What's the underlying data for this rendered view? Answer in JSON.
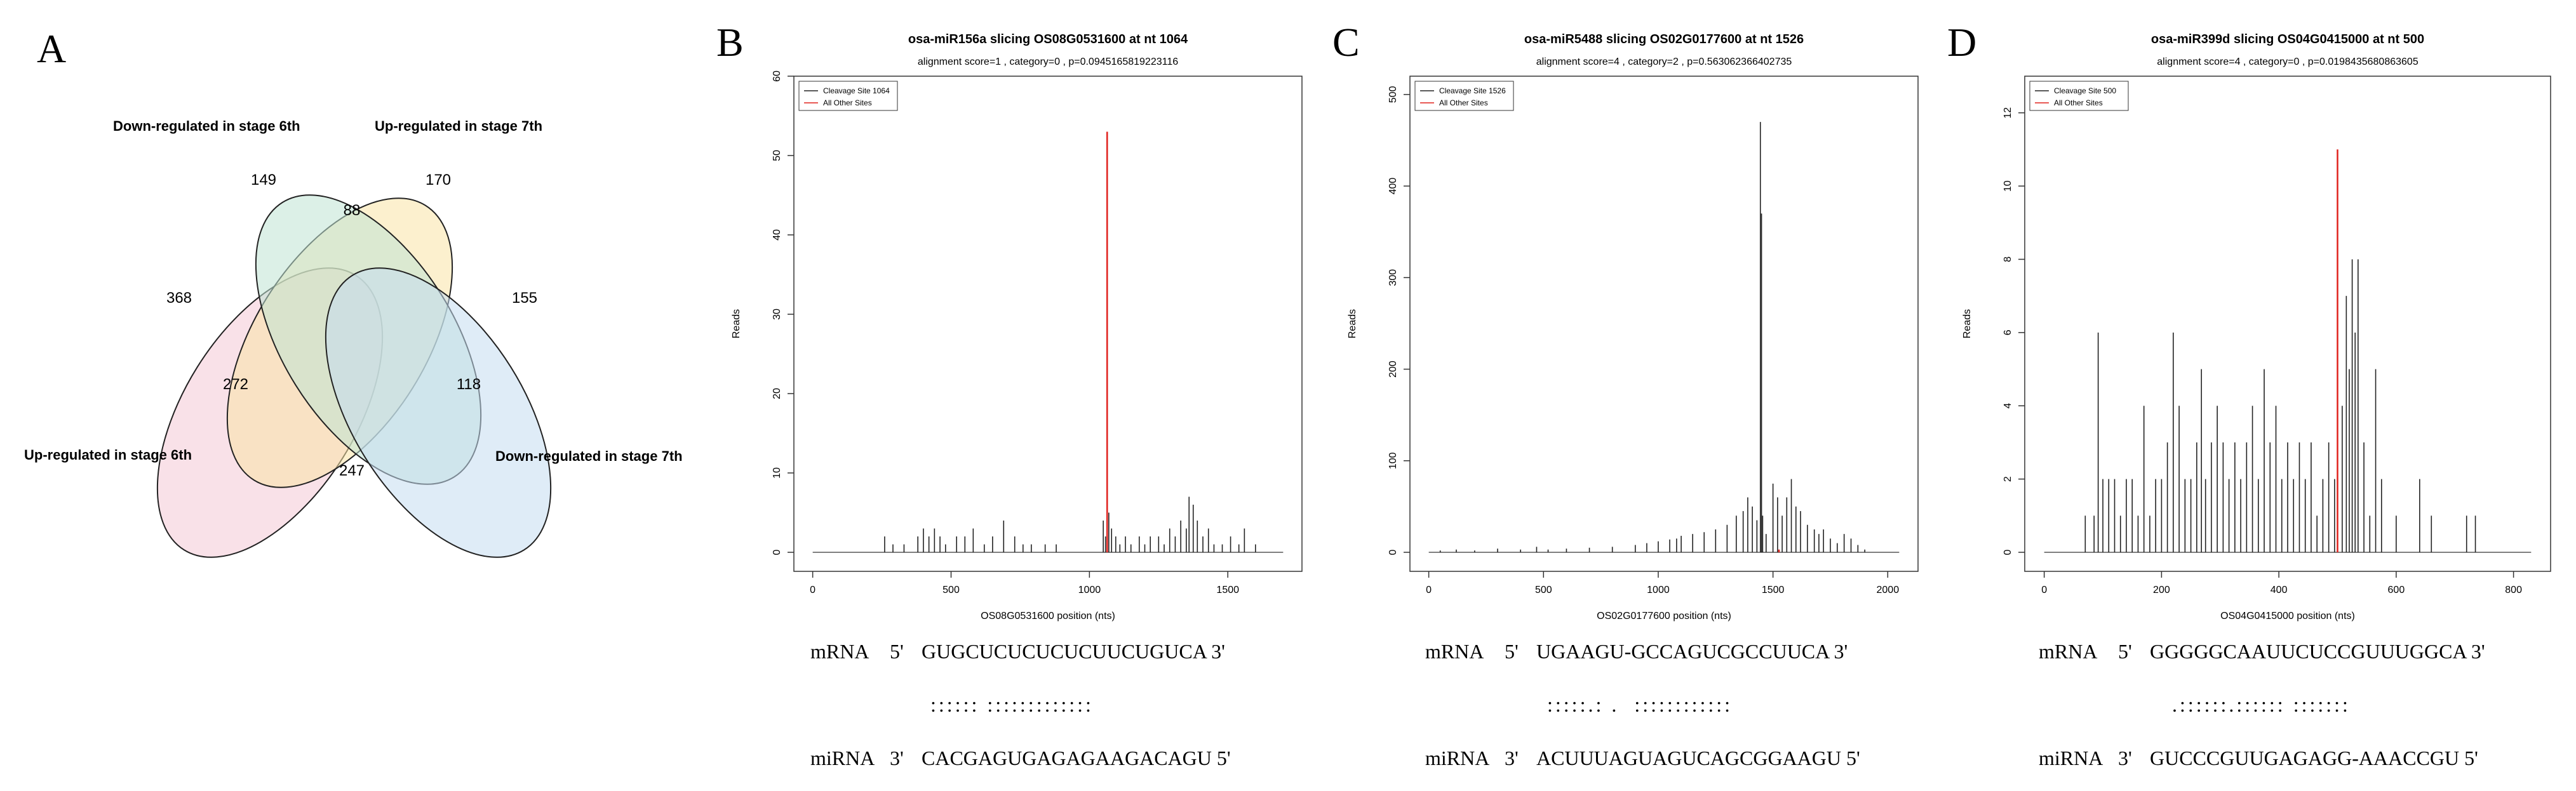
{
  "panels": {
    "A": "A",
    "B": "B",
    "C": "C",
    "D": "D"
  },
  "venn": {
    "labels": {
      "down6": "Down-regulated in stage 6th",
      "up7": "Up-regulated in stage 7th",
      "up6": "Up-regulated in stage 6th",
      "down7": "Down-regulated in stage 7th"
    },
    "counts": {
      "down6_only": "149",
      "up7_only": "170",
      "down6_up7": "88",
      "up6_only": "368",
      "down7_only": "155",
      "up6_down7": "247",
      "up6_up7": "272",
      "down6_down7": "118"
    },
    "colors": {
      "up6": "#f4c9d6",
      "down6": "#f9e3a6",
      "up7": "#bfe3d3",
      "down7": "#c5ddf0"
    }
  },
  "chart_data": [
    {
      "type": "bar",
      "title": "osa-miR156a slicing OS08G0531600 at nt 1064",
      "subtitle": "alignment score=1 , category=0 , p=0.0945165819223116",
      "xlabel": "OS08G0531600 position (nts)",
      "ylabel": "Reads",
      "xlim": [
        0,
        1700
      ],
      "ylim": [
        0,
        60
      ],
      "xticks": [
        0,
        500,
        1000,
        1500
      ],
      "yticks": [
        0,
        10,
        20,
        30,
        40,
        50,
        60
      ],
      "legend": [
        "Cleavage Site 1064",
        "All Other Sites"
      ],
      "cleavage_site": {
        "x": 1064,
        "y": 53
      },
      "other_sites": [
        [
          260,
          2
        ],
        [
          290,
          1
        ],
        [
          330,
          1
        ],
        [
          380,
          2
        ],
        [
          400,
          3
        ],
        [
          420,
          2
        ],
        [
          440,
          3
        ],
        [
          460,
          2
        ],
        [
          480,
          1
        ],
        [
          520,
          2
        ],
        [
          550,
          2
        ],
        [
          580,
          3
        ],
        [
          620,
          1
        ],
        [
          650,
          2
        ],
        [
          690,
          4
        ],
        [
          730,
          2
        ],
        [
          760,
          1
        ],
        [
          790,
          1
        ],
        [
          840,
          1
        ],
        [
          880,
          1
        ],
        [
          1050,
          4
        ],
        [
          1058,
          2
        ],
        [
          1070,
          5
        ],
        [
          1080,
          3
        ],
        [
          1095,
          2
        ],
        [
          1110,
          1
        ],
        [
          1130,
          2
        ],
        [
          1150,
          1
        ],
        [
          1180,
          2
        ],
        [
          1200,
          1
        ],
        [
          1220,
          2
        ],
        [
          1250,
          2
        ],
        [
          1270,
          1
        ],
        [
          1290,
          3
        ],
        [
          1310,
          2
        ],
        [
          1330,
          4
        ],
        [
          1350,
          3
        ],
        [
          1360,
          7
        ],
        [
          1375,
          6
        ],
        [
          1390,
          4
        ],
        [
          1410,
          2
        ],
        [
          1430,
          3
        ],
        [
          1450,
          1
        ],
        [
          1480,
          1
        ],
        [
          1510,
          2
        ],
        [
          1540,
          1
        ],
        [
          1560,
          3
        ],
        [
          1600,
          1
        ]
      ],
      "alignment": {
        "mrna_label": "mRNA",
        "mrna_5": "5'",
        "mrna_seq": "GUGCUCUCUCUCUUCUGUCA",
        "mrna_3": "3'",
        "pairs": ":::::: :::::::::::::",
        "mirna_label": "miRNA",
        "mirna_3": "3'",
        "mirna_seq": "CACGAGUGAGAGAAGACAGU",
        "mirna_5": "5'"
      }
    },
    {
      "type": "bar",
      "title": "osa-miR5488 slicing OS02G0177600 at nt 1526",
      "subtitle": "alignment score=4 , category=2 , p=0.563062366402735",
      "xlabel": "OS02G0177600 position (nts)",
      "ylabel": "Reads",
      "xlim": [
        0,
        2050
      ],
      "ylim": [
        0,
        520
      ],
      "xticks": [
        0,
        500,
        1000,
        1500,
        2000
      ],
      "yticks": [
        0,
        100,
        200,
        300,
        400,
        500
      ],
      "legend": [
        "Cleavage Site 1526",
        "All Other Sites"
      ],
      "cleavage_site": {
        "x": 1526,
        "y": 3
      },
      "other_sites": [
        [
          50,
          2
        ],
        [
          120,
          3
        ],
        [
          200,
          2
        ],
        [
          300,
          4
        ],
        [
          400,
          3
        ],
        [
          470,
          6
        ],
        [
          520,
          3
        ],
        [
          600,
          4
        ],
        [
          700,
          5
        ],
        [
          800,
          6
        ],
        [
          900,
          8
        ],
        [
          950,
          10
        ],
        [
          1000,
          12
        ],
        [
          1050,
          14
        ],
        [
          1080,
          15
        ],
        [
          1100,
          18
        ],
        [
          1150,
          20
        ],
        [
          1200,
          22
        ],
        [
          1250,
          25
        ],
        [
          1300,
          30
        ],
        [
          1340,
          40
        ],
        [
          1370,
          45
        ],
        [
          1390,
          60
        ],
        [
          1410,
          50
        ],
        [
          1430,
          35
        ],
        [
          1445,
          470
        ],
        [
          1450,
          370
        ],
        [
          1455,
          40
        ],
        [
          1470,
          20
        ],
        [
          1500,
          75
        ],
        [
          1520,
          60
        ],
        [
          1540,
          40
        ],
        [
          1560,
          60
        ],
        [
          1580,
          80
        ],
        [
          1600,
          50
        ],
        [
          1620,
          45
        ],
        [
          1650,
          30
        ],
        [
          1680,
          25
        ],
        [
          1700,
          20
        ],
        [
          1720,
          25
        ],
        [
          1750,
          15
        ],
        [
          1780,
          10
        ],
        [
          1810,
          20
        ],
        [
          1840,
          15
        ],
        [
          1870,
          8
        ],
        [
          1900,
          3
        ]
      ],
      "alignment": {
        "mrna_label": "mRNA",
        "mrna_5": "5'",
        "mrna_seq": "UGAAGU-GCCAGUCGCCUUCA",
        "mrna_3": "3'",
        "pairs": ":::::.: .  ::::::::::::",
        "mirna_label": "miRNA",
        "mirna_3": "3'",
        "mirna_seq": "ACUUUAGUAGUCAGCGGAAGU",
        "mirna_5": "5'"
      }
    },
    {
      "type": "bar",
      "title": "osa-miR399d slicing OS04G0415000 at nt 500",
      "subtitle": "alignment score=4 , category=0 , p=0.0198435680863605",
      "xlabel": "OS04G0415000 position (nts)",
      "ylabel": "Reads",
      "xlim": [
        0,
        830
      ],
      "ylim": [
        0,
        13
      ],
      "xticks": [
        0,
        200,
        400,
        600,
        800
      ],
      "yticks": [
        0,
        2,
        4,
        6,
        8,
        10,
        12
      ],
      "legend": [
        "Cleavage Site 500",
        "All Other Sites"
      ],
      "cleavage_site": {
        "x": 500,
        "y": 11
      },
      "other_sites": [
        [
          70,
          1
        ],
        [
          85,
          1
        ],
        [
          92,
          6
        ],
        [
          100,
          2
        ],
        [
          110,
          2
        ],
        [
          120,
          2
        ],
        [
          130,
          1
        ],
        [
          140,
          2
        ],
        [
          150,
          2
        ],
        [
          160,
          1
        ],
        [
          170,
          4
        ],
        [
          180,
          1
        ],
        [
          190,
          2
        ],
        [
          200,
          2
        ],
        [
          210,
          3
        ],
        [
          220,
          6
        ],
        [
          230,
          4
        ],
        [
          240,
          2
        ],
        [
          250,
          2
        ],
        [
          260,
          3
        ],
        [
          268,
          5
        ],
        [
          275,
          2
        ],
        [
          285,
          3
        ],
        [
          295,
          4
        ],
        [
          305,
          3
        ],
        [
          315,
          2
        ],
        [
          325,
          3
        ],
        [
          335,
          2
        ],
        [
          345,
          3
        ],
        [
          355,
          4
        ],
        [
          365,
          2
        ],
        [
          375,
          5
        ],
        [
          385,
          3
        ],
        [
          395,
          4
        ],
        [
          405,
          2
        ],
        [
          415,
          3
        ],
        [
          425,
          2
        ],
        [
          435,
          3
        ],
        [
          445,
          2
        ],
        [
          455,
          3
        ],
        [
          465,
          1
        ],
        [
          475,
          2
        ],
        [
          485,
          3
        ],
        [
          495,
          2
        ],
        [
          508,
          4
        ],
        [
          515,
          7
        ],
        [
          520,
          5
        ],
        [
          525,
          8
        ],
        [
          530,
          6
        ],
        [
          535,
          8
        ],
        [
          545,
          3
        ],
        [
          555,
          1
        ],
        [
          565,
          5
        ],
        [
          575,
          2
        ],
        [
          600,
          1
        ],
        [
          640,
          2
        ],
        [
          660,
          1
        ],
        [
          720,
          1
        ],
        [
          735,
          1
        ]
      ],
      "alignment": {
        "mrna_label": "mRNA",
        "mrna_5": "5'",
        "mrna_seq": "GGGGGCAAUUCUCCGUUUGGCA",
        "mrna_3": "3'",
        "pairs": ".::::::.:::::: :::::::",
        "mirna_label": "miRNA",
        "mirna_3": "3'",
        "mirna_seq": "GUCCCGUUGAGAGG-AAACCGU",
        "mirna_5": "5'"
      }
    }
  ]
}
